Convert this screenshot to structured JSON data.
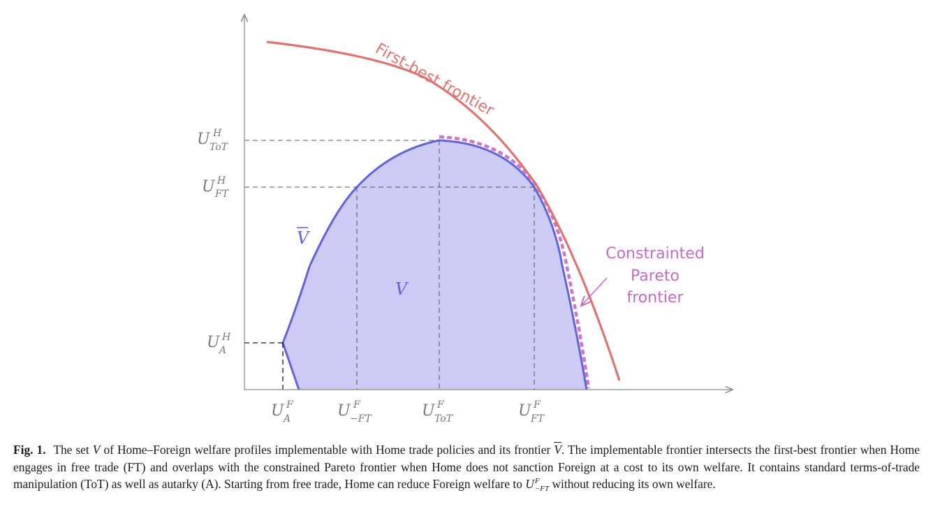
{
  "diagram": {
    "y_ticks": [
      {
        "id": "tot",
        "main": "U",
        "sup": "H",
        "sub": "ToT"
      },
      {
        "id": "ft",
        "main": "U",
        "sup": "H",
        "sub": "FT"
      },
      {
        "id": "a",
        "main": "U",
        "sup": "H",
        "sub": "A"
      }
    ],
    "x_ticks": [
      {
        "id": "a",
        "main": "U",
        "sup": "F",
        "sub": "A"
      },
      {
        "id": "mft",
        "main": "U",
        "sup": "F",
        "sub": "−FT"
      },
      {
        "id": "tot",
        "main": "U",
        "sup": "F",
        "sub": "ToT"
      },
      {
        "id": "ft",
        "main": "U",
        "sup": "F",
        "sub": "FT"
      }
    ],
    "labels": {
      "first_best": "First-best frontier",
      "constrained_line1": "Constrainted",
      "constrained_line2": "Pareto",
      "constrained_line3": "frontier",
      "v_bar": "V",
      "v_set": "V"
    },
    "colors": {
      "first_best": "#e07272",
      "implementable_fill": "#cbcbf5",
      "implementable_stroke": "#6262dd",
      "constrained": "#c46ac4",
      "axis": "#888888",
      "guide": "#555555"
    }
  },
  "caption": {
    "fig_label": "Fig. 1.",
    "part1": "The set",
    "sym_v": "V",
    "part2": "of Home–Foreign welfare profiles implementable with Home trade policies and its frontier",
    "sym_vbar": "V",
    "part3": ". The implementable frontier intersects the first-best frontier when Home engages in free trade (FT) and overlaps with the constrained Pareto frontier when Home does not sanction Foreign at a cost to its own welfare. It contains standard terms-of-trade manipulation (ToT) as well as autarky (A). Starting from free trade, Home can reduce Foreign welfare to",
    "end_main": "U",
    "end_sup": "F",
    "end_sub": "−FT",
    "part4": "without reducing its own welfare."
  }
}
